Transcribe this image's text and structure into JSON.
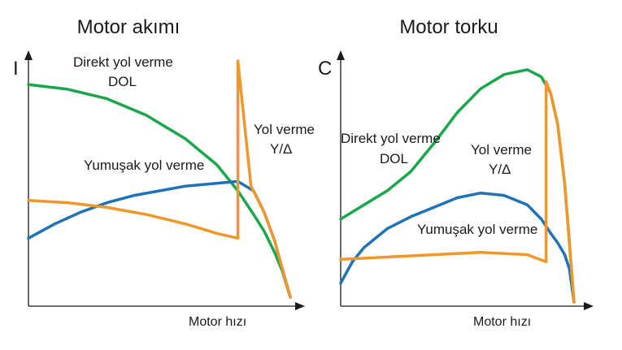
{
  "chart_data": [
    {
      "type": "line",
      "title": "Motor akımı",
      "ylabel": "I",
      "xlabel": "Motor hızı",
      "annotations": [
        "Direkt yol verme",
        "DOL",
        "Yol verme",
        "Y/Δ",
        "Yumuşak yol verme"
      ],
      "series": [
        {
          "key": "dol",
          "color": "#1aa64a",
          "x": [
            0,
            0.15,
            0.3,
            0.45,
            0.6,
            0.72,
            0.8,
            0.86,
            0.9,
            0.94,
            0.97,
            1.0
          ],
          "y": [
            0.9,
            0.88,
            0.84,
            0.77,
            0.67,
            0.56,
            0.45,
            0.35,
            0.28,
            0.19,
            0.11,
            0.0
          ]
        },
        {
          "key": "soft",
          "color": "#1e73b8",
          "x": [
            0,
            0.1,
            0.2,
            0.3,
            0.4,
            0.5,
            0.6,
            0.7,
            0.8,
            0.86,
            0.9,
            0.94,
            0.97,
            1.0
          ],
          "y": [
            0.25,
            0.31,
            0.36,
            0.4,
            0.43,
            0.45,
            0.47,
            0.48,
            0.49,
            0.45,
            0.36,
            0.24,
            0.12,
            0.0
          ]
        },
        {
          "key": "stardelta",
          "color": "#f0962a",
          "x": [
            0,
            0.15,
            0.3,
            0.45,
            0.6,
            0.72,
            0.8,
            0.8,
            0.85,
            0.9,
            0.94,
            0.97,
            1.0
          ],
          "y": [
            0.41,
            0.4,
            0.38,
            0.35,
            0.31,
            0.27,
            0.25,
            1.0,
            0.47,
            0.36,
            0.24,
            0.12,
            0.0
          ]
        }
      ]
    },
    {
      "type": "line",
      "title": "Motor torku",
      "ylabel": "C",
      "xlabel": "Motor hızı",
      "annotations": [
        "Direkt yol verme",
        "DOL",
        "Yol verme",
        "Y/Δ",
        "Yumuşak yol verme"
      ],
      "series": [
        {
          "key": "dol",
          "color": "#1aa64a",
          "x": [
            0,
            0.1,
            0.2,
            0.3,
            0.4,
            0.5,
            0.6,
            0.7,
            0.8,
            0.86,
            0.9,
            0.93,
            0.96,
            0.98,
            1.0
          ],
          "y": [
            0.35,
            0.41,
            0.47,
            0.55,
            0.67,
            0.8,
            0.9,
            0.96,
            0.98,
            0.95,
            0.88,
            0.75,
            0.5,
            0.25,
            0.0
          ]
        },
        {
          "key": "soft",
          "color": "#1e73b8",
          "x": [
            0,
            0.05,
            0.1,
            0.2,
            0.3,
            0.4,
            0.5,
            0.6,
            0.7,
            0.8,
            0.86,
            0.9,
            0.93,
            0.96,
            0.98,
            1.0
          ],
          "y": [
            0.08,
            0.17,
            0.23,
            0.31,
            0.36,
            0.4,
            0.44,
            0.46,
            0.45,
            0.41,
            0.35,
            0.29,
            0.25,
            0.2,
            0.14,
            0.0
          ]
        },
        {
          "key": "stardelta",
          "color": "#f0962a",
          "x": [
            0,
            0.2,
            0.4,
            0.6,
            0.8,
            0.88,
            0.88,
            0.9,
            0.93,
            0.96,
            0.98,
            1.0
          ],
          "y": [
            0.18,
            0.19,
            0.2,
            0.21,
            0.2,
            0.17,
            0.93,
            0.88,
            0.75,
            0.5,
            0.25,
            0.0
          ]
        }
      ]
    }
  ]
}
